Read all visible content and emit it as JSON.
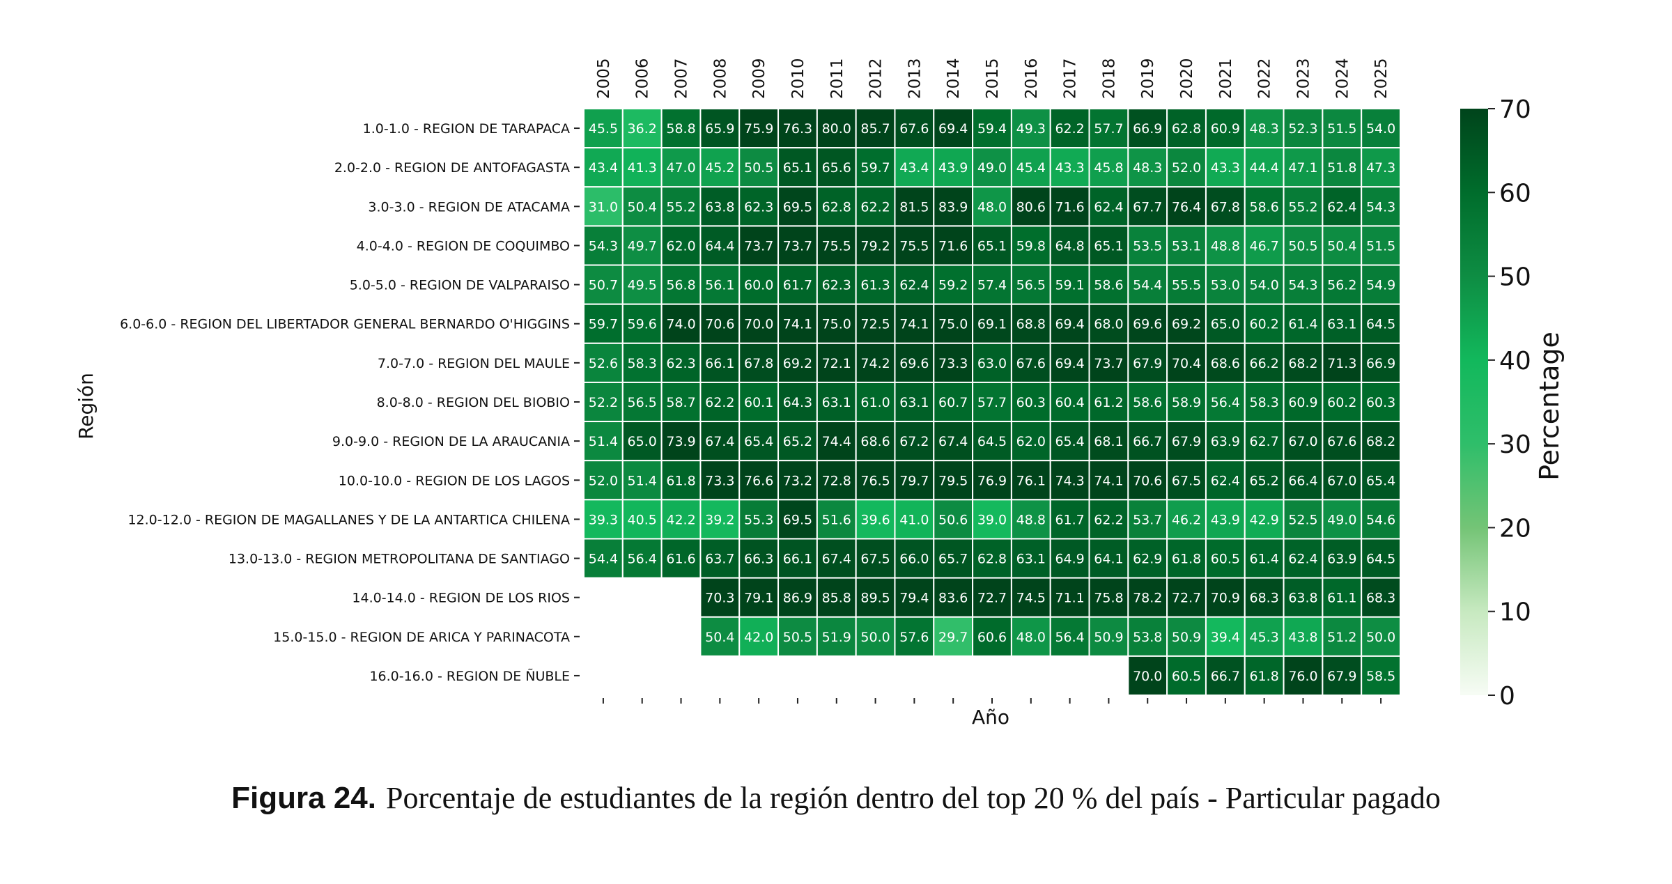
{
  "chart_data": {
    "type": "heatmap",
    "x": [
      "2005",
      "2006",
      "2007",
      "2008",
      "2009",
      "2010",
      "2011",
      "2012",
      "2013",
      "2014",
      "2015",
      "2016",
      "2017",
      "2018",
      "2019",
      "2020",
      "2021",
      "2022",
      "2023",
      "2024",
      "2025"
    ],
    "y": [
      "1.0-1.0 - REGION DE TARAPACA",
      "2.0-2.0 - REGION DE ANTOFAGASTA",
      "3.0-3.0 - REGION DE ATACAMA",
      "4.0-4.0 - REGION DE COQUIMBO",
      "5.0-5.0 - REGION DE VALPARAISO",
      "6.0-6.0 - REGION DEL LIBERTADOR GENERAL BERNARDO O'HIGGINS",
      "7.0-7.0 - REGION DEL MAULE",
      "8.0-8.0 - REGION DEL BIOBIO",
      "9.0-9.0 - REGION DE LA ARAUCANIA",
      "10.0-10.0 - REGION DE LOS LAGOS",
      "12.0-12.0 - REGION DE MAGALLANES Y DE LA ANTARTICA CHILENA",
      "13.0-13.0 - REGION METROPOLITANA DE SANTIAGO",
      "14.0-14.0 - REGION DE LOS RIOS",
      "15.0-15.0 - REGION DE ARICA Y PARINACOTA",
      "16.0-16.0 - REGION DE ÑUBLE"
    ],
    "values": [
      [
        45.5,
        36.2,
        58.8,
        65.9,
        75.9,
        76.3,
        80.0,
        85.7,
        67.6,
        69.4,
        59.4,
        49.3,
        62.2,
        57.7,
        66.9,
        62.8,
        60.9,
        48.3,
        52.3,
        51.5,
        54.0
      ],
      [
        43.4,
        41.3,
        47.0,
        45.2,
        50.5,
        65.1,
        65.6,
        59.7,
        43.4,
        43.9,
        49.0,
        45.4,
        43.3,
        45.8,
        48.3,
        52.0,
        43.3,
        44.4,
        47.1,
        51.8,
        47.3
      ],
      [
        31.0,
        50.4,
        55.2,
        63.8,
        62.3,
        69.5,
        62.8,
        62.2,
        81.5,
        83.9,
        48.0,
        80.6,
        71.6,
        62.4,
        67.7,
        76.4,
        67.8,
        58.6,
        55.2,
        62.4,
        54.3
      ],
      [
        54.3,
        49.7,
        62.0,
        64.4,
        73.7,
        73.7,
        75.5,
        79.2,
        75.5,
        71.6,
        65.1,
        59.8,
        64.8,
        65.1,
        53.5,
        53.1,
        48.8,
        46.7,
        50.5,
        50.4,
        51.5
      ],
      [
        50.7,
        49.5,
        56.8,
        56.1,
        60.0,
        61.7,
        62.3,
        61.3,
        62.4,
        59.2,
        57.4,
        56.5,
        59.1,
        58.6,
        54.4,
        55.5,
        53.0,
        54.0,
        54.3,
        56.2,
        54.9
      ],
      [
        59.7,
        59.6,
        74.0,
        70.6,
        70.0,
        74.1,
        75.0,
        72.5,
        74.1,
        75.0,
        69.1,
        68.8,
        69.4,
        68.0,
        69.6,
        69.2,
        65.0,
        60.2,
        61.4,
        63.1,
        64.5
      ],
      [
        52.6,
        58.3,
        62.3,
        66.1,
        67.8,
        69.2,
        72.1,
        74.2,
        69.6,
        73.3,
        63.0,
        67.6,
        69.4,
        73.7,
        67.9,
        70.4,
        68.6,
        66.2,
        68.2,
        71.3,
        66.9
      ],
      [
        52.2,
        56.5,
        58.7,
        62.2,
        60.1,
        64.3,
        63.1,
        61.0,
        63.1,
        60.7,
        57.7,
        60.3,
        60.4,
        61.2,
        58.6,
        58.9,
        56.4,
        58.3,
        60.9,
        60.2,
        60.3
      ],
      [
        51.4,
        65.0,
        73.9,
        67.4,
        65.4,
        65.2,
        74.4,
        68.6,
        67.2,
        67.4,
        64.5,
        62.0,
        65.4,
        68.1,
        66.7,
        67.9,
        63.9,
        62.7,
        67.0,
        67.6,
        68.2
      ],
      [
        52.0,
        51.4,
        61.8,
        73.3,
        76.6,
        73.2,
        72.8,
        76.5,
        79.7,
        79.5,
        76.9,
        76.1,
        74.3,
        74.1,
        70.6,
        67.5,
        62.4,
        65.2,
        66.4,
        67.0,
        65.4
      ],
      [
        39.3,
        40.5,
        42.2,
        39.2,
        55.3,
        69.5,
        51.6,
        39.6,
        41.0,
        50.6,
        39.0,
        48.8,
        61.7,
        62.2,
        53.7,
        46.2,
        43.9,
        42.9,
        52.5,
        49.0,
        54.6
      ],
      [
        54.4,
        56.4,
        61.6,
        63.7,
        66.3,
        66.1,
        67.4,
        67.5,
        66.0,
        65.7,
        62.8,
        63.1,
        64.9,
        64.1,
        62.9,
        61.8,
        60.5,
        61.4,
        62.4,
        63.9,
        64.5
      ],
      [
        null,
        null,
        null,
        70.3,
        79.1,
        86.9,
        85.8,
        89.5,
        79.4,
        83.6,
        72.7,
        74.5,
        71.1,
        75.8,
        78.2,
        72.7,
        70.9,
        68.3,
        63.8,
        61.1,
        68.3
      ],
      [
        null,
        null,
        null,
        50.4,
        42.0,
        50.5,
        51.9,
        50.0,
        57.6,
        29.7,
        60.6,
        48.0,
        56.4,
        50.9,
        53.8,
        50.9,
        39.4,
        45.3,
        43.8,
        51.2,
        50.0
      ],
      [
        null,
        null,
        null,
        null,
        null,
        null,
        null,
        null,
        null,
        null,
        null,
        null,
        null,
        null,
        70.0,
        60.5,
        66.7,
        61.8,
        76.0,
        67.9,
        58.5
      ]
    ],
    "xlabel": "Año",
    "ylabel": "Región",
    "colorbar": {
      "label": "Percentage",
      "range": [
        0,
        70
      ],
      "ticks": [
        "0",
        "10",
        "20",
        "30",
        "40",
        "50",
        "60",
        "70"
      ],
      "colormap": "Greens",
      "colors": [
        "#f7fcf5",
        "#c7e9c0",
        "#74c476",
        "#2fbe6a",
        "#12b85c",
        "#0e8d43",
        "#006d2c",
        "#00441b"
      ]
    },
    "cell_label_format": "0.0",
    "grid": "white cell borders"
  },
  "caption": {
    "label": "Figura 24.",
    "text": "Porcentaje de estudiantes de la región dentro del top 20 % del país - Particular pagado"
  }
}
